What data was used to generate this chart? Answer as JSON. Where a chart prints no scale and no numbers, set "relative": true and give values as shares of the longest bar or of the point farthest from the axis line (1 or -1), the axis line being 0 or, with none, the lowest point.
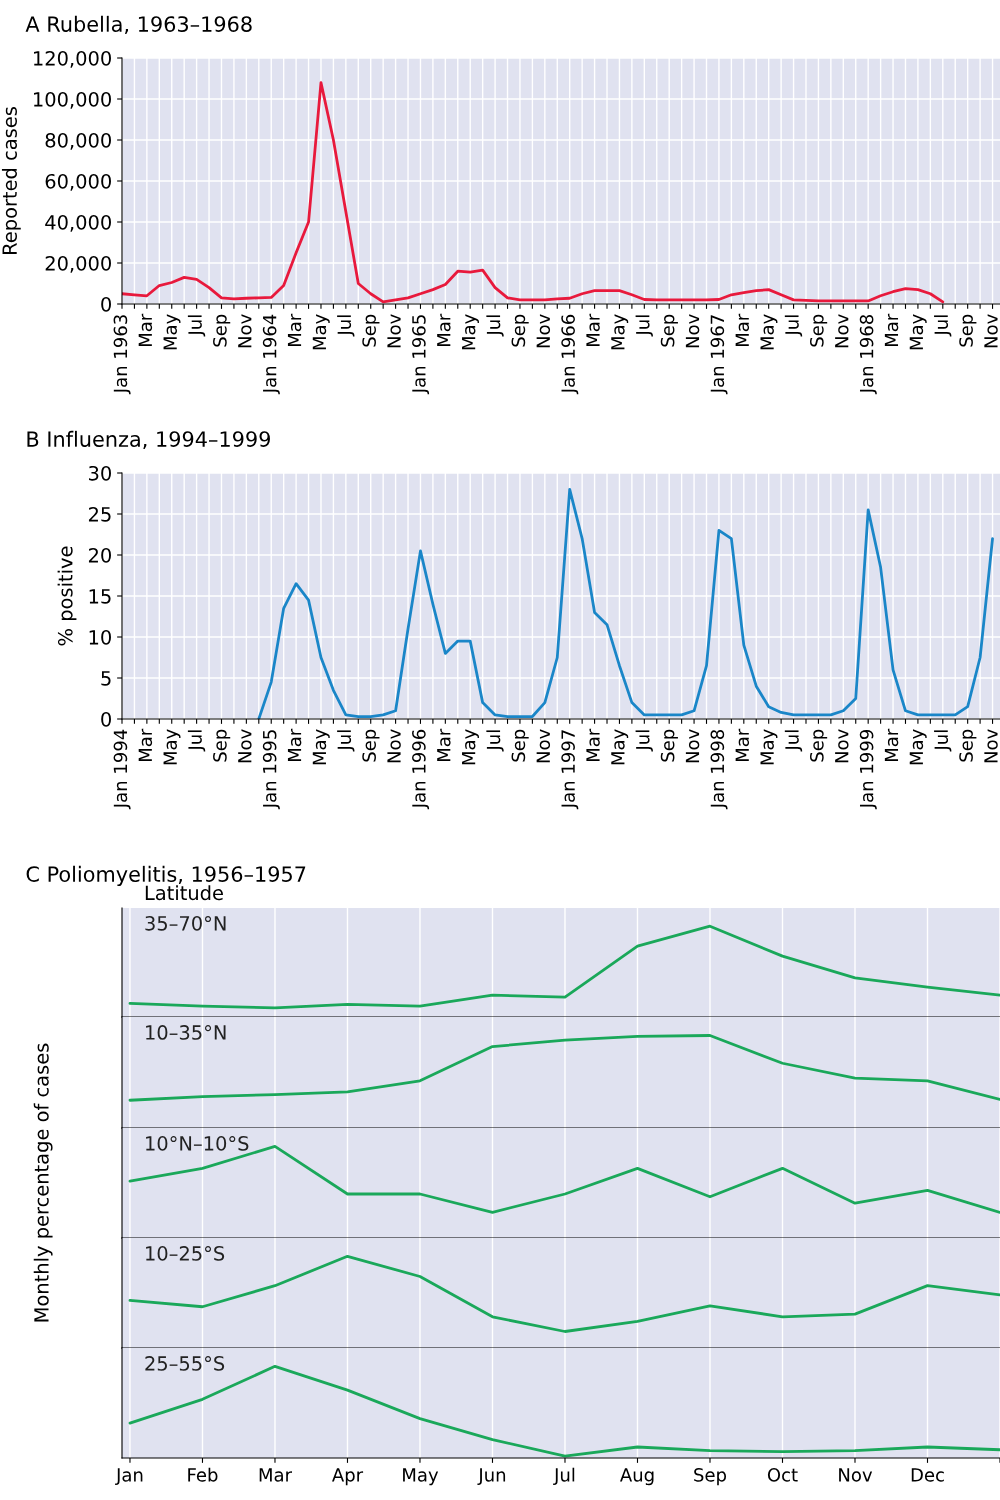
{
  "chart_data": [
    {
      "type": "line",
      "title": "A Rubella, 1963–1968",
      "ylabel": "Reported cases",
      "categories": [
        "Jan 1963",
        null,
        "Mar",
        null,
        "May",
        null,
        "Jul",
        null,
        "Sep",
        null,
        "Nov",
        null,
        "Jan 1964",
        null,
        "Mar",
        null,
        "May",
        null,
        "Jul",
        null,
        "Sep",
        null,
        "Nov",
        null,
        "Jan 1965",
        null,
        "Mar",
        null,
        "May",
        null,
        "Jul",
        null,
        "Sep",
        null,
        "Nov",
        null,
        "Jan 1966",
        null,
        "Mar",
        null,
        "May",
        null,
        "Jul",
        null,
        "Sep",
        null,
        "Nov",
        null,
        "Jan 1967",
        null,
        "Mar",
        null,
        "May",
        null,
        "Jul",
        null,
        "Sep",
        null,
        "Nov",
        null,
        "Jan 1968",
        null,
        "Mar",
        null,
        "May",
        null,
        "Jul",
        null,
        "Sep",
        null,
        "Nov"
      ],
      "series": [
        {
          "color": "#e8193c",
          "values": [
            5000,
            4500,
            4000,
            9000,
            10500,
            13000,
            12000,
            8000,
            3000,
            2500,
            2800,
            3000,
            3200,
            9000,
            25000,
            40000,
            108000,
            80000,
            45000,
            10000,
            5000,
            1000,
            2000,
            3000,
            5000,
            7000,
            9500,
            16000,
            15500,
            16500,
            8000,
            3000,
            2000,
            2000,
            2000,
            2500,
            2800,
            5000,
            6500,
            6500,
            6500,
            4500,
            2200,
            2000,
            2000,
            2000,
            2000,
            2000,
            2200,
            4500,
            5500,
            6500,
            7000,
            4500,
            2000,
            1800,
            1500,
            1500,
            1500,
            1500,
            1500,
            4000,
            6000,
            7500,
            7000,
            5000,
            1000,
            null,
            null,
            null,
            null
          ]
        }
      ],
      "ylim": [
        0,
        120000
      ],
      "yticks": [
        0,
        {
          "value": 20000,
          "label": "20,000"
        },
        {
          "value": 40000,
          "label": "40,000"
        },
        {
          "value": 60000,
          "label": "60,000"
        },
        {
          "value": 80000,
          "label": "80,000"
        },
        {
          "value": 100000,
          "label": "100,000"
        },
        {
          "value": 120000,
          "label": "120,000"
        }
      ],
      "grid": true
    },
    {
      "type": "line",
      "title": "B Influenza, 1994–1999",
      "ylabel": "% positive",
      "categories": [
        "Jan 1994",
        null,
        "Mar",
        null,
        "May",
        null,
        "Jul",
        null,
        "Sep",
        null,
        "Nov",
        null,
        "Jan 1995",
        null,
        "Mar",
        null,
        "May",
        null,
        "Jul",
        null,
        "Sep",
        null,
        "Nov",
        null,
        "Jan 1996",
        null,
        "Mar",
        null,
        "May",
        null,
        "Jul",
        null,
        "Sep",
        null,
        "Nov",
        null,
        "Jan 1997",
        null,
        "Mar",
        null,
        "May",
        null,
        "Jul",
        null,
        "Sep",
        null,
        "Nov",
        null,
        "Jan 1998",
        null,
        "Mar",
        null,
        "May",
        null,
        "Jul",
        null,
        "Sep",
        null,
        "Nov",
        null,
        "Jan 1999",
        null,
        "Mar",
        null,
        "May",
        null,
        "Jul",
        null,
        "Sep",
        null,
        "Nov"
      ],
      "series": [
        {
          "color": "#1a86c8",
          "values": [
            null,
            null,
            null,
            null,
            null,
            null,
            null,
            null,
            null,
            null,
            null,
            0,
            4.5,
            13.5,
            16.5,
            14.5,
            7.5,
            3.5,
            0.5,
            0.3,
            0.3,
            0.5,
            1,
            11,
            20.5,
            14,
            8,
            9.5,
            9.5,
            2,
            0.5,
            0.3,
            0.3,
            0.3,
            2,
            7.5,
            28,
            22,
            13,
            11.5,
            6.5,
            2,
            0.5,
            0.5,
            0.5,
            0.5,
            1,
            6.5,
            23,
            22,
            9,
            4,
            1.5,
            0.8,
            0.5,
            0.5,
            0.5,
            0.5,
            1,
            2.5,
            25.5,
            18.5,
            6,
            1,
            0.5,
            0.5,
            0.5,
            0.5,
            1.5,
            7.5,
            22
          ]
        }
      ],
      "ylim": [
        0,
        30
      ],
      "yticks": [
        0,
        5,
        10,
        15,
        20,
        25,
        30
      ],
      "grid": true
    },
    {
      "type": "line",
      "title": "C Poliomyelitis, 1956–1957",
      "annotations": [
        "Latitude"
      ],
      "relative": true,
      "tick_labels": false,
      "grid": "x",
      "categories": [
        null,
        null,
        null,
        null,
        null,
        null,
        null,
        null,
        null,
        null,
        null,
        null,
        null
      ],
      "series": [
        {
          "name": "35–70°N",
          "color": "#1aa85a",
          "values": [
            0.15,
            0.12,
            0.1,
            0.14,
            0.12,
            0.24,
            0.22,
            0.78,
            1,
            0.67,
            0.43,
            0.33,
            0.24
          ]
        }
      ]
    },
    {
      "type": "line",
      "relative": true,
      "tick_labels": false,
      "grid": "x",
      "categories": [
        null,
        null,
        null,
        null,
        null,
        null,
        null,
        null,
        null,
        null,
        null,
        null,
        null
      ],
      "series": [
        {
          "name": "10–35°N",
          "color": "#1aa85a",
          "values": [
            0.3,
            0.34,
            0.36,
            0.39,
            0.51,
            0.88,
            0.95,
            0.99,
            1,
            0.7,
            0.54,
            0.51,
            0.31
          ]
        }
      ]
    },
    {
      "type": "line",
      "relative": true,
      "tick_labels": false,
      "grid": "x",
      "ylabel": "Monthly percentage of cases",
      "categories": [
        null,
        null,
        null,
        null,
        null,
        null,
        null,
        null,
        null,
        null,
        null,
        null,
        null
      ],
      "series": [
        {
          "name": "10°N–10°S",
          "color": "#1aa85a",
          "values": [
            0.62,
            0.76,
            1,
            0.48,
            0.48,
            0.28,
            0.48,
            0.76,
            0.45,
            0.76,
            0.38,
            0.52,
            0.28
          ]
        }
      ]
    },
    {
      "type": "line",
      "relative": true,
      "tick_labels": false,
      "grid": "x",
      "categories": [
        null,
        null,
        null,
        null,
        null,
        null,
        null,
        null,
        null,
        null,
        null,
        null,
        null
      ],
      "series": [
        {
          "name": "10–25°S",
          "color": "#1aa85a",
          "values": [
            0.52,
            0.45,
            0.68,
            1,
            0.78,
            0.34,
            0.18,
            0.29,
            0.46,
            0.34,
            0.37,
            0.68,
            0.58
          ]
        }
      ]
    },
    {
      "type": "line",
      "relative": true,
      "tick_labels": "x",
      "grid": "x",
      "categories": [
        "Jan",
        "Feb",
        "Mar",
        "Apr",
        "May",
        "Jun",
        "Jul",
        "Aug",
        "Sep",
        "Oct",
        "Nov",
        "Dec",
        null
      ],
      "series": [
        {
          "name": "25–55°S",
          "color": "#1aa85a",
          "values": [
            0.38,
            0.64,
            1,
            0.74,
            0.43,
            0.2,
            0.02,
            0.12,
            0.08,
            0.07,
            0.08,
            0.12,
            0.09
          ]
        }
      ]
    }
  ]
}
